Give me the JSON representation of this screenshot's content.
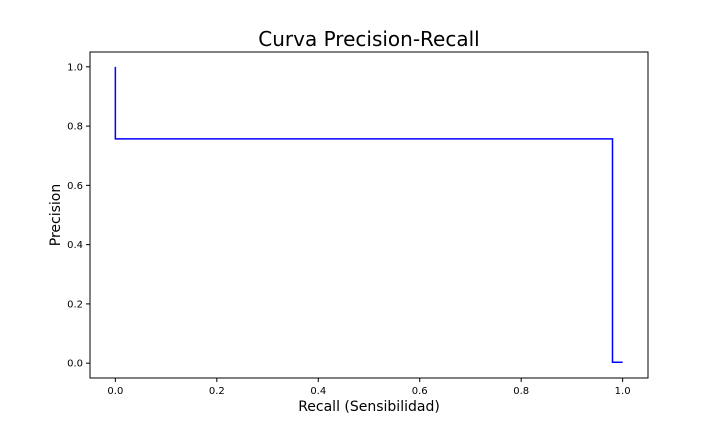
{
  "chart_data": {
    "type": "line",
    "title": "Curva Precision-Recall",
    "xlabel": "Recall (Sensibilidad)",
    "ylabel": "Precision",
    "xlim": [
      -0.05,
      1.05
    ],
    "ylim": [
      -0.05,
      1.05
    ],
    "xticks": [
      "0.0",
      "0.2",
      "0.4",
      "0.6",
      "0.8",
      "1.0"
    ],
    "yticks": [
      "0.0",
      "0.2",
      "0.4",
      "0.6",
      "0.8",
      "1.0"
    ],
    "grid": false,
    "series": [
      {
        "color": "#0000ff",
        "x": [
          0.0,
          0.0,
          0.98,
          0.98,
          1.0
        ],
        "y": [
          1.0,
          0.757,
          0.757,
          0.003,
          0.003
        ]
      }
    ]
  }
}
